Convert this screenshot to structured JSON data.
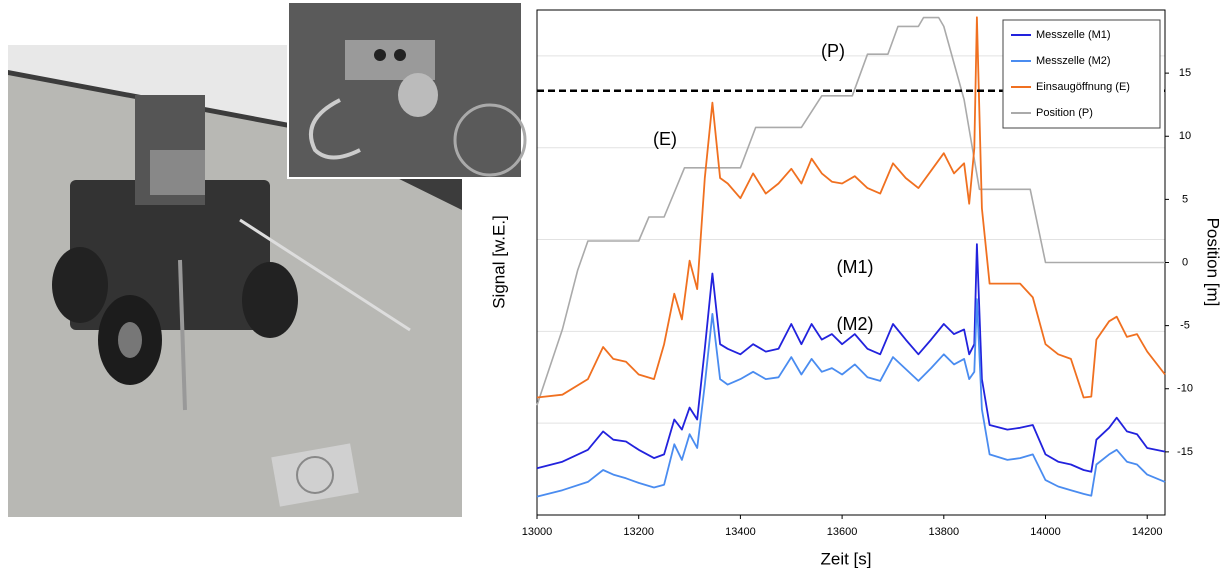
{
  "chart_data": {
    "type": "line",
    "xlabel": "Zeit [s]",
    "ylabel": "Signal [w.E.]",
    "y2label": "Position [m]",
    "xlim": [
      13000,
      14235
    ],
    "xticks": [
      13000,
      13200,
      13400,
      13600,
      13800,
      14000,
      14200
    ],
    "ylim": [
      0,
      5.5
    ],
    "ygrid": [
      1,
      2,
      3,
      4,
      5
    ],
    "y2lim": [
      -20,
      20
    ],
    "y2ticks": [
      -15,
      -10,
      -5,
      0,
      5,
      10,
      15
    ],
    "threshold": 4.62,
    "annotations": [
      "(P)",
      "(E)",
      "(M1)",
      "(M2)"
    ],
    "legend": "upper right",
    "x": [
      13000,
      13050,
      13100,
      13130,
      13150,
      13175,
      13200,
      13230,
      13250,
      13270,
      13285,
      13300,
      13315,
      13330,
      13345,
      13360,
      13375,
      13400,
      13425,
      13450,
      13475,
      13500,
      13520,
      13540,
      13560,
      13580,
      13600,
      13625,
      13650,
      13675,
      13700,
      13725,
      13750,
      13775,
      13800,
      13820,
      13840,
      13850,
      13860,
      13865,
      13875,
      13890,
      13925,
      13950,
      13975,
      14000,
      14025,
      14050,
      14075,
      14090,
      14100,
      14125,
      14140,
      14160,
      14180,
      14200,
      14235
    ],
    "series": [
      {
        "name": "Messzelle (M1)",
        "color": "#2222dd",
        "axis": "y",
        "values": [
          0.51,
          0.58,
          0.71,
          0.91,
          0.82,
          0.8,
          0.71,
          0.62,
          0.66,
          1.04,
          0.93,
          1.17,
          1.04,
          1.81,
          2.63,
          1.86,
          1.81,
          1.75,
          1.86,
          1.78,
          1.81,
          2.08,
          1.86,
          2.08,
          1.91,
          1.97,
          1.86,
          1.97,
          1.81,
          1.75,
          2.08,
          1.91,
          1.75,
          1.91,
          2.08,
          1.97,
          2.02,
          1.75,
          1.86,
          2.95,
          1.48,
          0.98,
          0.93,
          0.95,
          0.98,
          0.66,
          0.58,
          0.55,
          0.49,
          0.47,
          0.82,
          0.95,
          1.06,
          0.91,
          0.88,
          0.73,
          0.69
        ]
      },
      {
        "name": "Messzelle (M2)",
        "color": "#4a8cf0",
        "axis": "y",
        "values": [
          0.2,
          0.27,
          0.36,
          0.49,
          0.44,
          0.4,
          0.35,
          0.3,
          0.33,
          0.77,
          0.6,
          0.88,
          0.73,
          1.42,
          2.19,
          1.48,
          1.42,
          1.48,
          1.56,
          1.48,
          1.5,
          1.72,
          1.53,
          1.7,
          1.56,
          1.6,
          1.53,
          1.64,
          1.5,
          1.46,
          1.72,
          1.59,
          1.46,
          1.6,
          1.75,
          1.64,
          1.7,
          1.48,
          1.56,
          2.35,
          1.15,
          0.66,
          0.6,
          0.62,
          0.66,
          0.38,
          0.31,
          0.27,
          0.23,
          0.21,
          0.55,
          0.66,
          0.71,
          0.58,
          0.55,
          0.44,
          0.36
        ]
      },
      {
        "name": "Einsaugöffnung (E)",
        "color": "#f07020",
        "axis": "y",
        "values": [
          1.28,
          1.31,
          1.48,
          1.83,
          1.7,
          1.67,
          1.53,
          1.48,
          1.86,
          2.41,
          2.13,
          2.77,
          2.46,
          3.67,
          4.49,
          3.67,
          3.61,
          3.45,
          3.72,
          3.5,
          3.61,
          3.77,
          3.61,
          3.88,
          3.72,
          3.63,
          3.61,
          3.69,
          3.56,
          3.5,
          3.83,
          3.67,
          3.56,
          3.75,
          3.94,
          3.72,
          3.83,
          3.39,
          3.99,
          5.42,
          3.34,
          2.52,
          2.52,
          2.52,
          2.37,
          1.86,
          1.75,
          1.7,
          1.28,
          1.29,
          1.91,
          2.11,
          2.16,
          1.94,
          1.97,
          1.78,
          1.53
        ]
      },
      {
        "name": "Position (P)",
        "color": "#aaaaaa",
        "axis": "y2",
        "x": [
          13000,
          13050,
          13080,
          13100,
          13200,
          13220,
          13250,
          13290,
          13400,
          13430,
          13520,
          13560,
          13620,
          13650,
          13690,
          13710,
          13750,
          13760,
          13790,
          13800,
          13840,
          13870,
          13970,
          14000,
          14235
        ],
        "values": [
          -11.3,
          -5.3,
          -0.6,
          1.7,
          1.7,
          3.6,
          3.6,
          7.5,
          7.5,
          10.7,
          10.7,
          13.2,
          13.2,
          16.5,
          16.5,
          18.7,
          18.7,
          19.4,
          19.4,
          18.7,
          12.9,
          5.8,
          5.8,
          0,
          0
        ]
      }
    ]
  }
}
